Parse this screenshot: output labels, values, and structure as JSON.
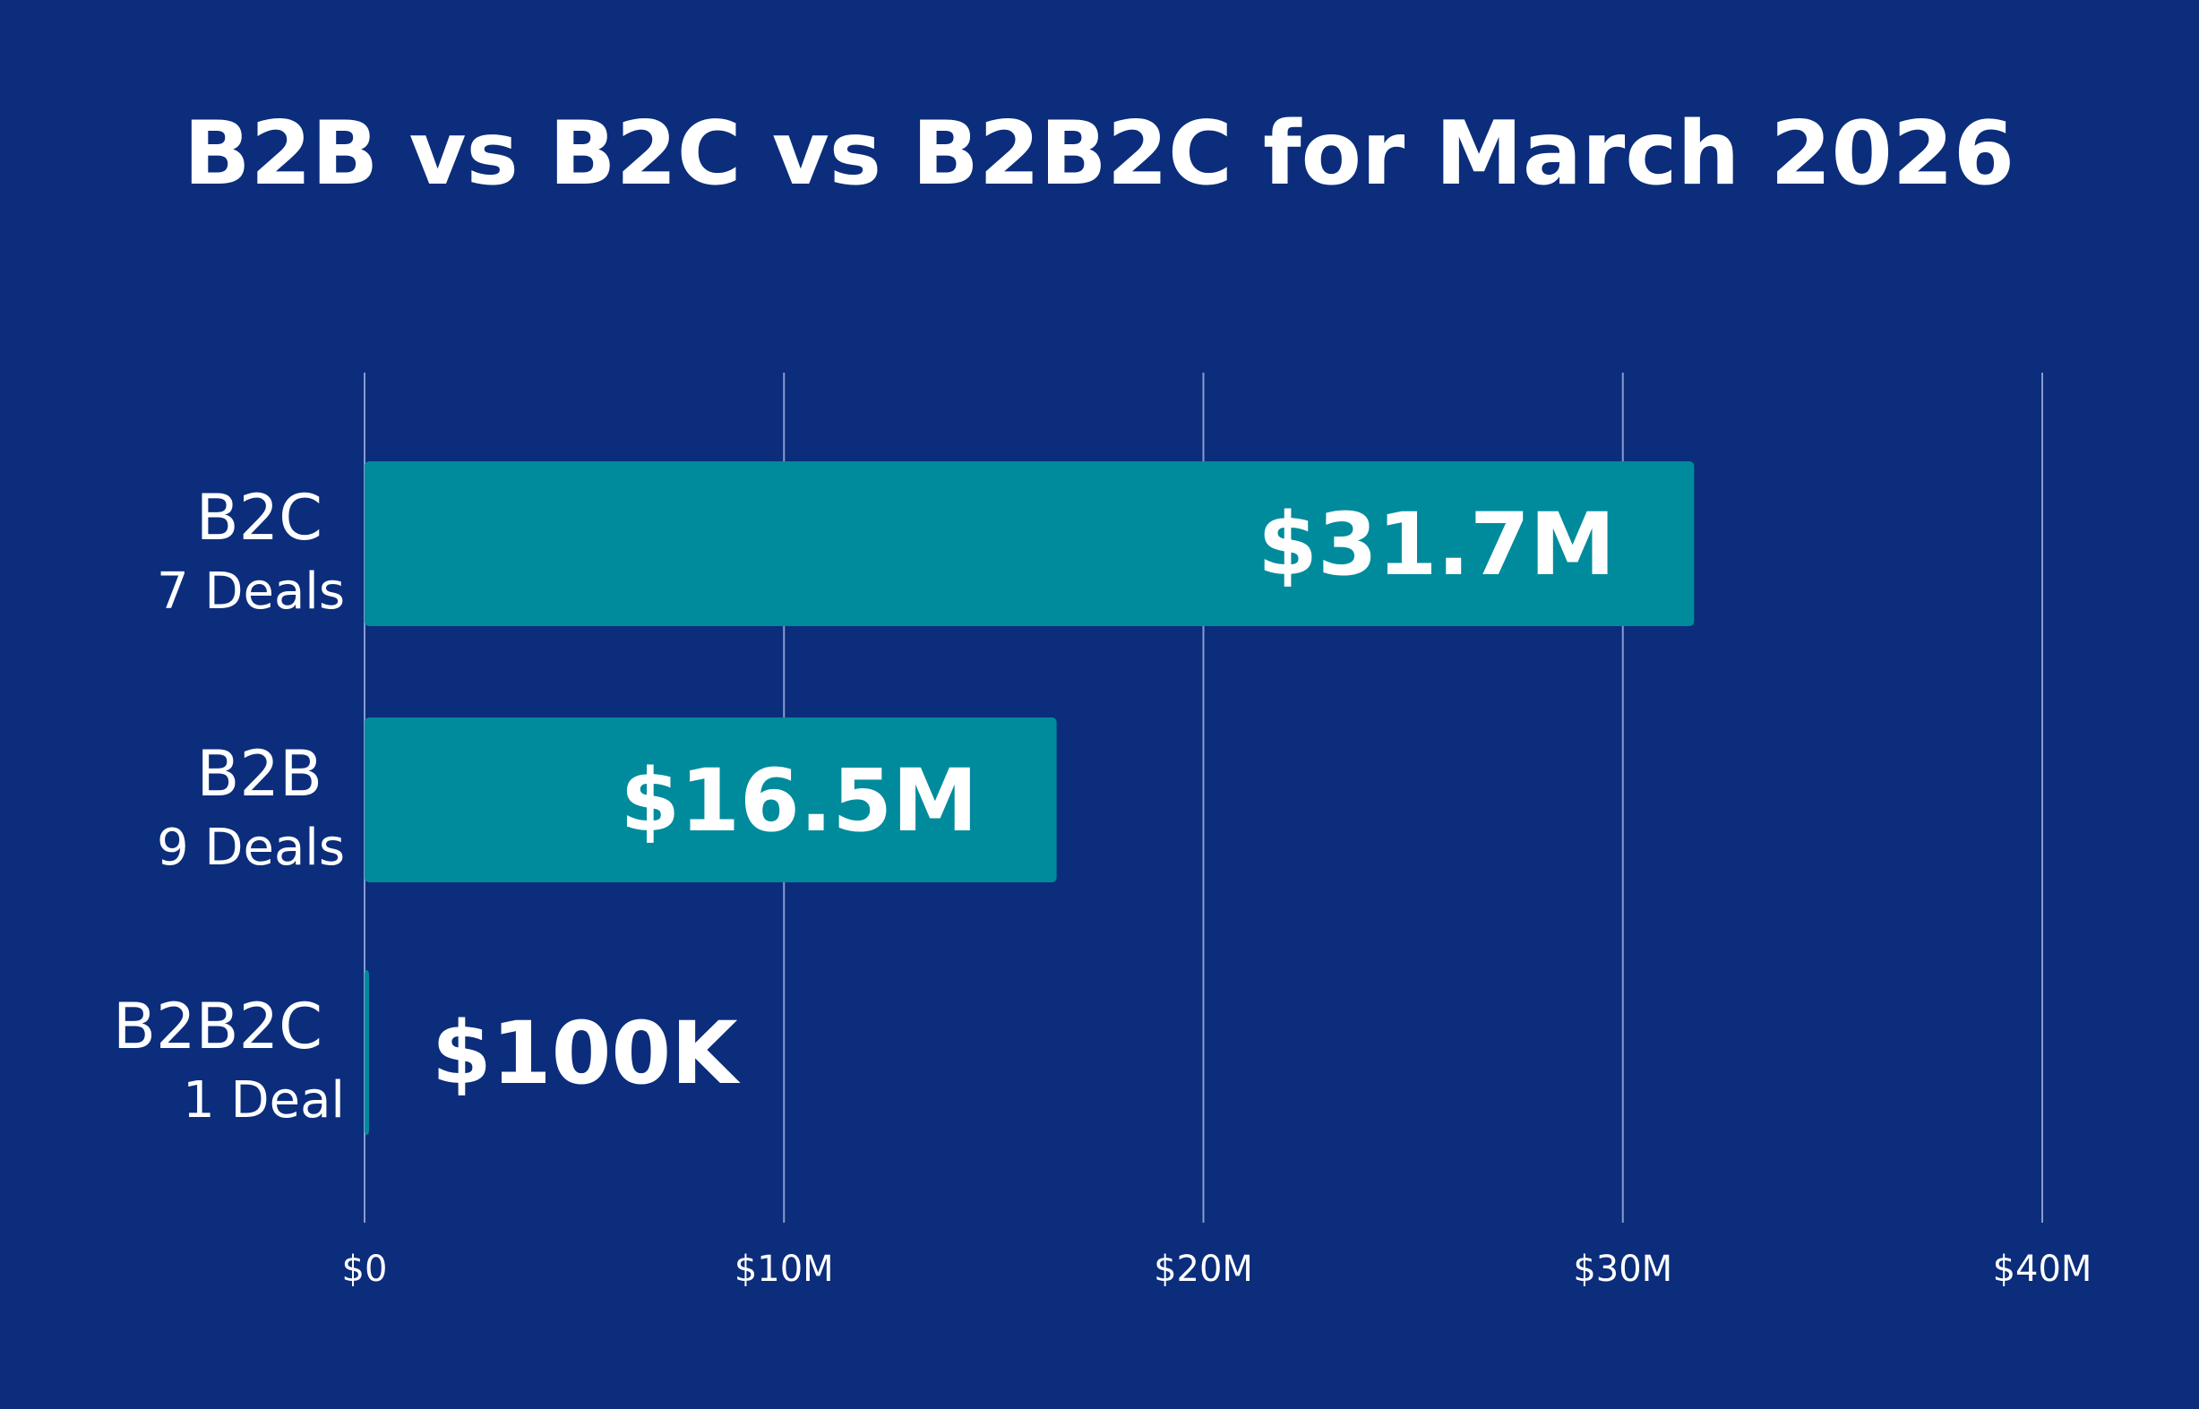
{
  "colors": {
    "background": "#0b2d7b",
    "bar": "#008b9c",
    "grid": "#8a9ad0",
    "text": "#ffffff"
  },
  "chart_data": {
    "type": "bar",
    "orientation": "horizontal",
    "title": "B2B vs B2C vs B2B2C for March 2026",
    "categories": [
      "B2C",
      "B2B",
      "B2B2C"
    ],
    "category_sublabels": [
      "7 Deals",
      "9 Deals",
      "1 Deal"
    ],
    "values": [
      31.7,
      16.5,
      0.1
    ],
    "value_unit": "$M",
    "data_labels": [
      "$31.7M",
      "$16.5M",
      "$100K"
    ],
    "xlim": [
      0,
      40
    ],
    "xticks": [
      0,
      10,
      20,
      30,
      40
    ],
    "xtick_labels": [
      "$0",
      "$10M",
      "$20M",
      "$30M",
      "$40M"
    ],
    "grid": true,
    "legend": "none"
  }
}
